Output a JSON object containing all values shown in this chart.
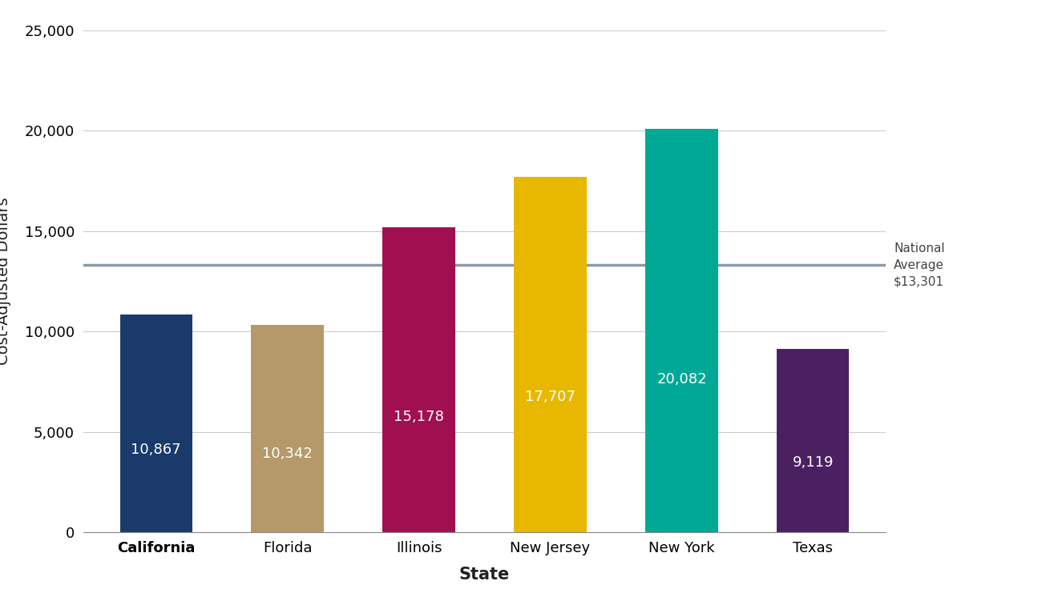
{
  "categories": [
    "California",
    "Florida",
    "Illinois",
    "New Jersey",
    "New York",
    "Texas"
  ],
  "values": [
    10867,
    10342,
    15178,
    17707,
    20082,
    9119
  ],
  "bar_colors": [
    "#1a3a6b",
    "#b5996a",
    "#a01050",
    "#e8b800",
    "#00a896",
    "#4b2060"
  ],
  "value_labels": [
    "10,867",
    "10,342",
    "15,178",
    "17,707",
    "20,082",
    "9,119"
  ],
  "national_average": 13301,
  "national_average_label_line1": "National",
  "national_average_label_line2": "Average",
  "national_average_label_line3": "$13,301",
  "ylabel": "Cost-Adjusted Dollars",
  "xlabel": "State",
  "ylim": [
    0,
    25000
  ],
  "yticks": [
    0,
    5000,
    10000,
    15000,
    20000,
    25000
  ],
  "background_color": "#ffffff",
  "grid_color": "#cccccc",
  "avg_line_color": "#8899aa",
  "label_fontsize": 13,
  "value_fontsize": 13,
  "axis_label_fontsize": 14,
  "tick_fontsize": 13,
  "bar_width": 0.55,
  "label_text_color": "#444444",
  "nat_avg_fontsize": 11
}
